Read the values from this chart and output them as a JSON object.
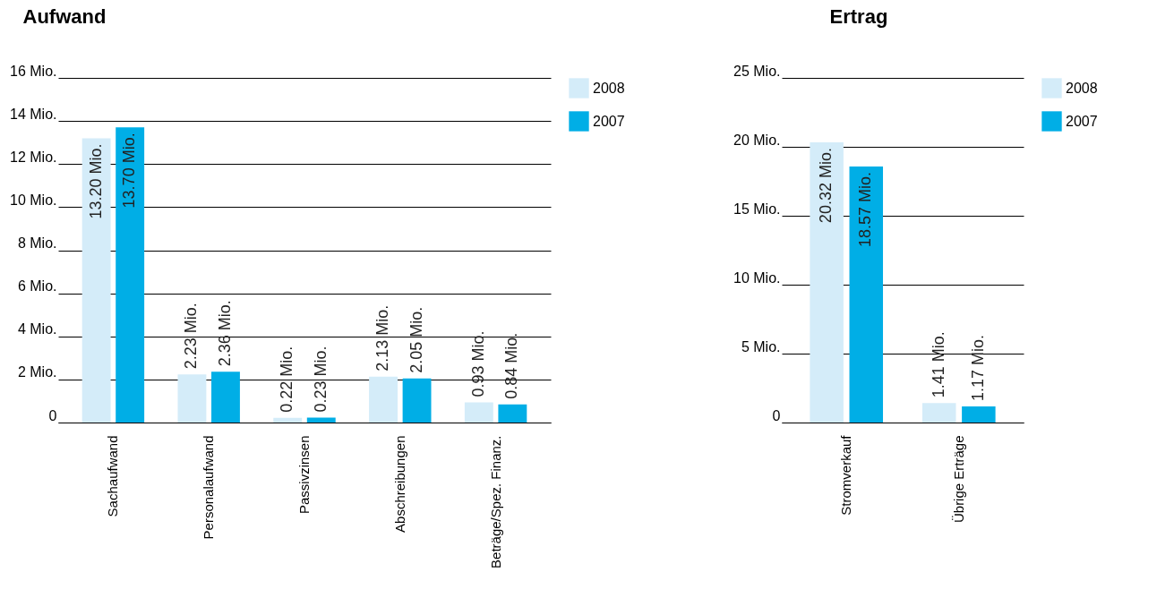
{
  "chart_data": [
    {
      "type": "bar",
      "title": "Aufwand",
      "categories": [
        "Sachaufwand",
        "Personalaufwand",
        "Passivzinsen",
        "Abschreibungen",
        "Beträge/Spez. Finanz."
      ],
      "series": [
        {
          "name": "2008",
          "color": "#d4ecf9",
          "values": [
            13.2,
            2.23,
            0.22,
            2.13,
            0.93
          ],
          "value_labels": [
            "13.20 Mio.",
            "2.23 Mio.",
            "0.22 Mio.",
            "2.13 Mio.",
            "0.93 Mio."
          ]
        },
        {
          "name": "2007",
          "color": "#00aee6",
          "values": [
            13.7,
            2.36,
            0.23,
            2.05,
            0.84
          ],
          "value_labels": [
            "13.70 Mio.",
            "2.36 Mio.",
            "0.23 Mio.",
            "2.05 Mio.",
            "0.84 Mio."
          ]
        }
      ],
      "ylim": [
        0,
        16
      ],
      "yticks": [
        0,
        {
          "value": 2,
          "label": "2 Mio."
        },
        {
          "value": 4,
          "label": "4 Mio."
        },
        {
          "value": 6,
          "label": "6 Mio."
        },
        {
          "value": 8,
          "label": "8 Mio."
        },
        {
          "value": 10,
          "label": "10 Mio."
        },
        {
          "value": 12,
          "label": "12 Mio."
        },
        {
          "value": 14,
          "label": "14 Mio."
        },
        {
          "value": 16,
          "label": "16 Mio."
        }
      ],
      "grid": "y",
      "legend": "top right"
    },
    {
      "type": "bar",
      "title": "Ertrag",
      "categories": [
        "Stromverkauf",
        "Übrige Erträge"
      ],
      "series": [
        {
          "name": "2008",
          "color": "#d4ecf9",
          "values": [
            20.32,
            1.41
          ],
          "value_labels": [
            "20.32 Mio.",
            "1.41 Mio."
          ]
        },
        {
          "name": "2007",
          "color": "#00aee6",
          "values": [
            18.57,
            1.17
          ],
          "value_labels": [
            "18.57 Mio.",
            "1.17 Mio."
          ]
        }
      ],
      "ylim": [
        0,
        25
      ],
      "yticks": [
        0,
        {
          "value": 5,
          "label": "5 Mio."
        },
        {
          "value": 10,
          "label": "10 Mio."
        },
        {
          "value": 15,
          "label": "15 Mio."
        },
        {
          "value": 20,
          "label": "20 Mio."
        },
        {
          "value": 25,
          "label": "25 Mio."
        }
      ],
      "grid": "y",
      "legend": "top right"
    }
  ]
}
